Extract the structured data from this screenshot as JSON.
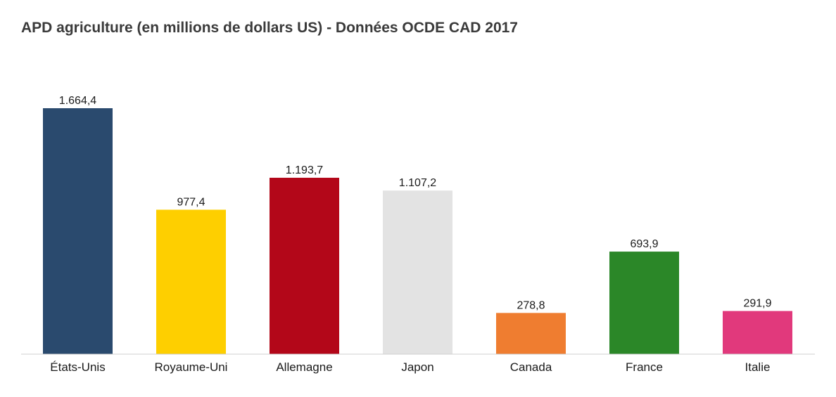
{
  "chart_data": {
    "type": "bar",
    "title": "APD agriculture (en millions de dollars US) - Données OCDE CAD 2017",
    "xlabel": "",
    "ylabel": "",
    "ylim": [
      0,
      1664.4
    ],
    "grid": false,
    "legend": "none",
    "categories": [
      "États-Unis",
      "Royaume-Uni",
      "Allemagne",
      "Japon",
      "Canada",
      "France",
      "Italie"
    ],
    "values": [
      1664.4,
      977.4,
      1193.7,
      1107.2,
      278.8,
      693.9,
      291.9
    ],
    "value_labels": [
      "1.664,4",
      "977,4",
      "1.193,7",
      "1.107,2",
      "278,8",
      "693,9",
      "291,9"
    ],
    "colors": [
      "#2a4a6e",
      "#fecf00",
      "#b30719",
      "#e3e3e3",
      "#ef7d30",
      "#2b8728",
      "#e1397c"
    ]
  }
}
